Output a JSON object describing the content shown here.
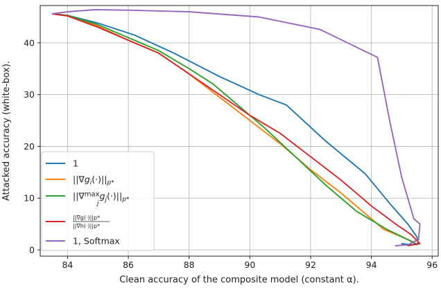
{
  "chart_data": {
    "type": "line",
    "xlabel": "Clean accuracy of the composite model (constant α).",
    "ylabel": "Attacked accuracy (white-box).",
    "xlim": [
      83.1,
      96.2
    ],
    "ylim": [
      -1.2,
      47.2
    ],
    "xticks": [
      84,
      86,
      88,
      90,
      92,
      94,
      96
    ],
    "yticks": [
      0,
      10,
      20,
      30,
      40
    ],
    "grid": true,
    "legend_position": "lower-left",
    "series": [
      {
        "name": "1",
        "color": "#1f77b4",
        "x": [
          83.5,
          84.0,
          85.0,
          86.2,
          87.5,
          89.0,
          90.3,
          91.2,
          92.5,
          93.8,
          94.6,
          95.2,
          95.5,
          95.55,
          95.35,
          95.0
        ],
        "y": [
          45.6,
          45.3,
          43.8,
          41.5,
          38.0,
          33.5,
          30.0,
          28.0,
          21.0,
          14.7,
          9.0,
          5.0,
          2.5,
          1.3,
          1.0,
          1.2
        ]
      },
      {
        "name": "||∇g_i(·)||_p*",
        "color": "#ff7f0e",
        "x": [
          83.5,
          84.0,
          85.0,
          86.0,
          87.0,
          88.0,
          89.0,
          90.0,
          91.0,
          92.0,
          93.0,
          94.0,
          94.4,
          95.0,
          95.4,
          95.5
        ],
        "y": [
          45.6,
          45.2,
          43.2,
          40.5,
          38.0,
          34.0,
          29.5,
          25.0,
          20.5,
          15.5,
          11.0,
          6.0,
          4.0,
          2.5,
          1.5,
          1.0
        ]
      },
      {
        "name": "||∇max_j g_j(·)||_p*",
        "color": "#2ca02c",
        "x": [
          83.5,
          84.0,
          85.0,
          86.0,
          87.0,
          88.0,
          88.8,
          89.5,
          90.5,
          91.5,
          92.5,
          93.5,
          94.5,
          95.2,
          95.5
        ],
        "y": [
          45.6,
          45.3,
          43.5,
          41.0,
          38.5,
          35.0,
          32.0,
          28.5,
          23.5,
          18.0,
          12.5,
          7.5,
          4.0,
          2.0,
          1.0
        ]
      },
      {
        "name": "||∇g(·)||_p* / ||∇h(·)||_p*",
        "color": "#d62728",
        "x": [
          83.5,
          84.0,
          85.0,
          86.0,
          87.0,
          88.0,
          89.0,
          90.0,
          91.0,
          92.0,
          93.0,
          94.0,
          94.8,
          95.3,
          95.6,
          95.2
        ],
        "y": [
          45.6,
          45.2,
          43.0,
          40.5,
          38.0,
          34.0,
          30.0,
          26.0,
          22.5,
          18.0,
          13.5,
          8.5,
          5.0,
          3.0,
          1.2,
          0.8
        ]
      },
      {
        "name": "1, Softmax",
        "color": "#9467bd",
        "x": [
          83.5,
          84.0,
          84.9,
          86.0,
          88.0,
          90.3,
          92.3,
          94.2,
          94.6,
          95.0,
          95.4,
          95.6,
          95.55,
          95.2,
          94.8
        ],
        "y": [
          45.6,
          46.0,
          46.4,
          46.3,
          46.0,
          45.0,
          42.6,
          37.2,
          25.0,
          14.0,
          6.0,
          5.0,
          2.0,
          1.0,
          0.8
        ]
      }
    ]
  }
}
